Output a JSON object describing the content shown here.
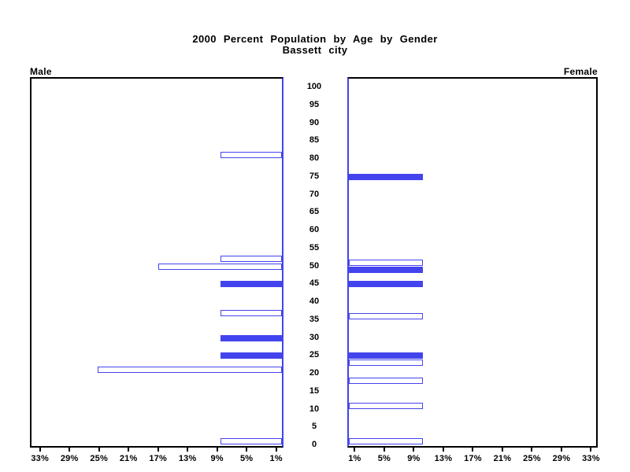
{
  "title": {
    "line1": "2000 Percent Population by Age by Gender",
    "line2": "Bassett city"
  },
  "colors": {
    "bar_blue": "#4444ee",
    "axis_black": "#000000",
    "background": "#ffffff"
  },
  "chart_data": {
    "type": "bar",
    "subtype": "population-pyramid",
    "title": "2000 Percent Population by Age by Gender",
    "subtitle": "Bassett city",
    "grid": false,
    "legend": false,
    "age_axis": {
      "min": 0,
      "max": 100,
      "tick_step": 5,
      "ticks": [
        100,
        95,
        90,
        85,
        80,
        75,
        70,
        65,
        60,
        55,
        50,
        45,
        40,
        35,
        30,
        25,
        20,
        15,
        10,
        5,
        0
      ]
    },
    "pct_axis": {
      "ticks": [
        1,
        5,
        9,
        13,
        17,
        21,
        25,
        29,
        33
      ],
      "label_suffix": "%",
      "max": 34.3,
      "male_direction": "right-to-left",
      "female_direction": "left-to-right"
    },
    "series": [
      {
        "name": "Male",
        "side": "left",
        "bars": [
          {
            "age": 81,
            "pct": 8.3,
            "filled": false
          },
          {
            "age": 52,
            "pct": 8.3,
            "filled": false
          },
          {
            "age": 50,
            "pct": 16.7,
            "filled": false
          },
          {
            "age": 45,
            "pct": 8.3,
            "filled": true
          },
          {
            "age": 37,
            "pct": 8.3,
            "filled": false
          },
          {
            "age": 30,
            "pct": 8.3,
            "filled": true
          },
          {
            "age": 25,
            "pct": 8.3,
            "filled": true
          },
          {
            "age": 21,
            "pct": 25.0,
            "filled": false
          },
          {
            "age": 1,
            "pct": 8.3,
            "filled": false
          }
        ]
      },
      {
        "name": "Female",
        "side": "right",
        "bars": [
          {
            "age": 75,
            "pct": 10.0,
            "filled": true
          },
          {
            "age": 51,
            "pct": 10.0,
            "filled": false
          },
          {
            "age": 49,
            "pct": 10.0,
            "filled": true
          },
          {
            "age": 45,
            "pct": 10.0,
            "filled": true
          },
          {
            "age": 36,
            "pct": 10.0,
            "filled": false
          },
          {
            "age": 25,
            "pct": 10.0,
            "filled": true
          },
          {
            "age": 23,
            "pct": 10.0,
            "filled": false
          },
          {
            "age": 18,
            "pct": 10.0,
            "filled": false
          },
          {
            "age": 11,
            "pct": 10.0,
            "filled": false
          },
          {
            "age": 1,
            "pct": 10.0,
            "filled": false
          }
        ]
      }
    ]
  }
}
